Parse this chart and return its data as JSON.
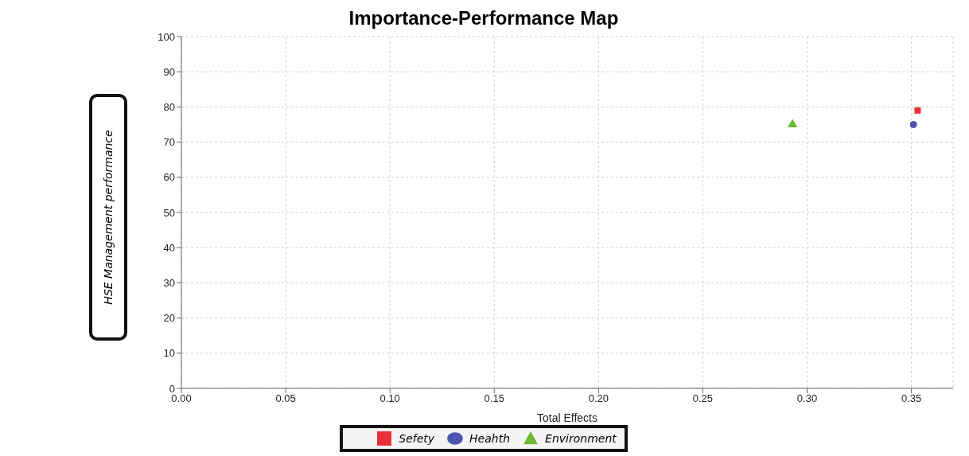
{
  "chart_data": {
    "type": "scatter",
    "title": "Importance-Performance Map",
    "xlabel": "Total Effects",
    "ylabel": "HSE Management performance",
    "xlim": [
      0,
      0.37
    ],
    "xticks": [
      {
        "value": 0,
        "label": "0.00"
      },
      0.05,
      {
        "value": 0.1,
        "label": "0.10"
      },
      0.15,
      {
        "value": 0.2,
        "label": "0.20"
      },
      0.25,
      {
        "value": 0.3,
        "label": "0.30"
      },
      0.35
    ],
    "ylim": [
      0,
      100
    ],
    "yticks": [
      0,
      10,
      20,
      30,
      40,
      50,
      60,
      70,
      80,
      90,
      100
    ],
    "grid": true,
    "legend": "bottom",
    "series": [
      {
        "name": "Sefety",
        "color": "#e8303a",
        "marker": "square",
        "x": [
          0.353
        ],
        "values": [
          79
        ]
      },
      {
        "name": "Heahth",
        "color": "#4e55b0",
        "marker": "circle",
        "x": [
          0.351
        ],
        "values": [
          75
        ]
      },
      {
        "name": "Environment",
        "color": "#6ab92e",
        "marker": "triangle",
        "x": [
          0.293
        ],
        "values": [
          75
        ]
      }
    ]
  }
}
